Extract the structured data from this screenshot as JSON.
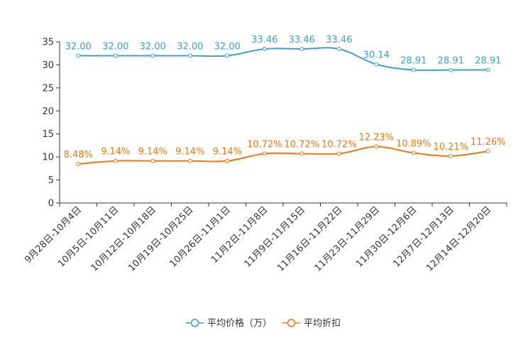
{
  "chart_data": {
    "type": "line",
    "categories": [
      "9月28日-10月4日",
      "10月5日-10月11日",
      "10月12日-10月18日",
      "10月19日-10月25日",
      "10月26日-11月1日",
      "11月2日-11月8日",
      "11月9日-11月15日",
      "11月16日-11月22日",
      "11月23日-11月29日",
      "11月30日-12月6日",
      "12月7日-12月13日",
      "12月14日-12月20日"
    ],
    "ylim": [
      0,
      35
    ],
    "yticks": [
      0,
      5,
      10,
      15,
      20,
      25,
      30,
      35
    ],
    "series": [
      {
        "name": "平均价格（万）",
        "color": "#3e9fcd",
        "values": [
          32.0,
          32.0,
          32.0,
          32.0,
          32.0,
          33.46,
          33.46,
          33.46,
          30.14,
          28.91,
          28.91,
          28.91
        ],
        "labels": [
          "32.00",
          "32.00",
          "32.00",
          "32.00",
          "32.00",
          "33.46",
          "33.46",
          "33.46",
          "30.14",
          "28.91",
          "28.91",
          "28.91"
        ]
      },
      {
        "name": "平均折扣",
        "color": "#f2780f",
        "values": [
          8.48,
          9.14,
          9.14,
          9.14,
          9.14,
          10.72,
          10.72,
          10.72,
          12.23,
          10.89,
          10.21,
          11.26
        ],
        "labels": [
          "8.48%",
          "9.14%",
          "9.14%",
          "9.14%",
          "9.14%",
          "10.72%",
          "10.72%",
          "10.72%",
          "12.23%",
          "10.89%",
          "10.21%",
          "11.26%"
        ]
      }
    ],
    "title": "",
    "xlabel": "",
    "ylabel": "",
    "legend": "bottom-center"
  }
}
